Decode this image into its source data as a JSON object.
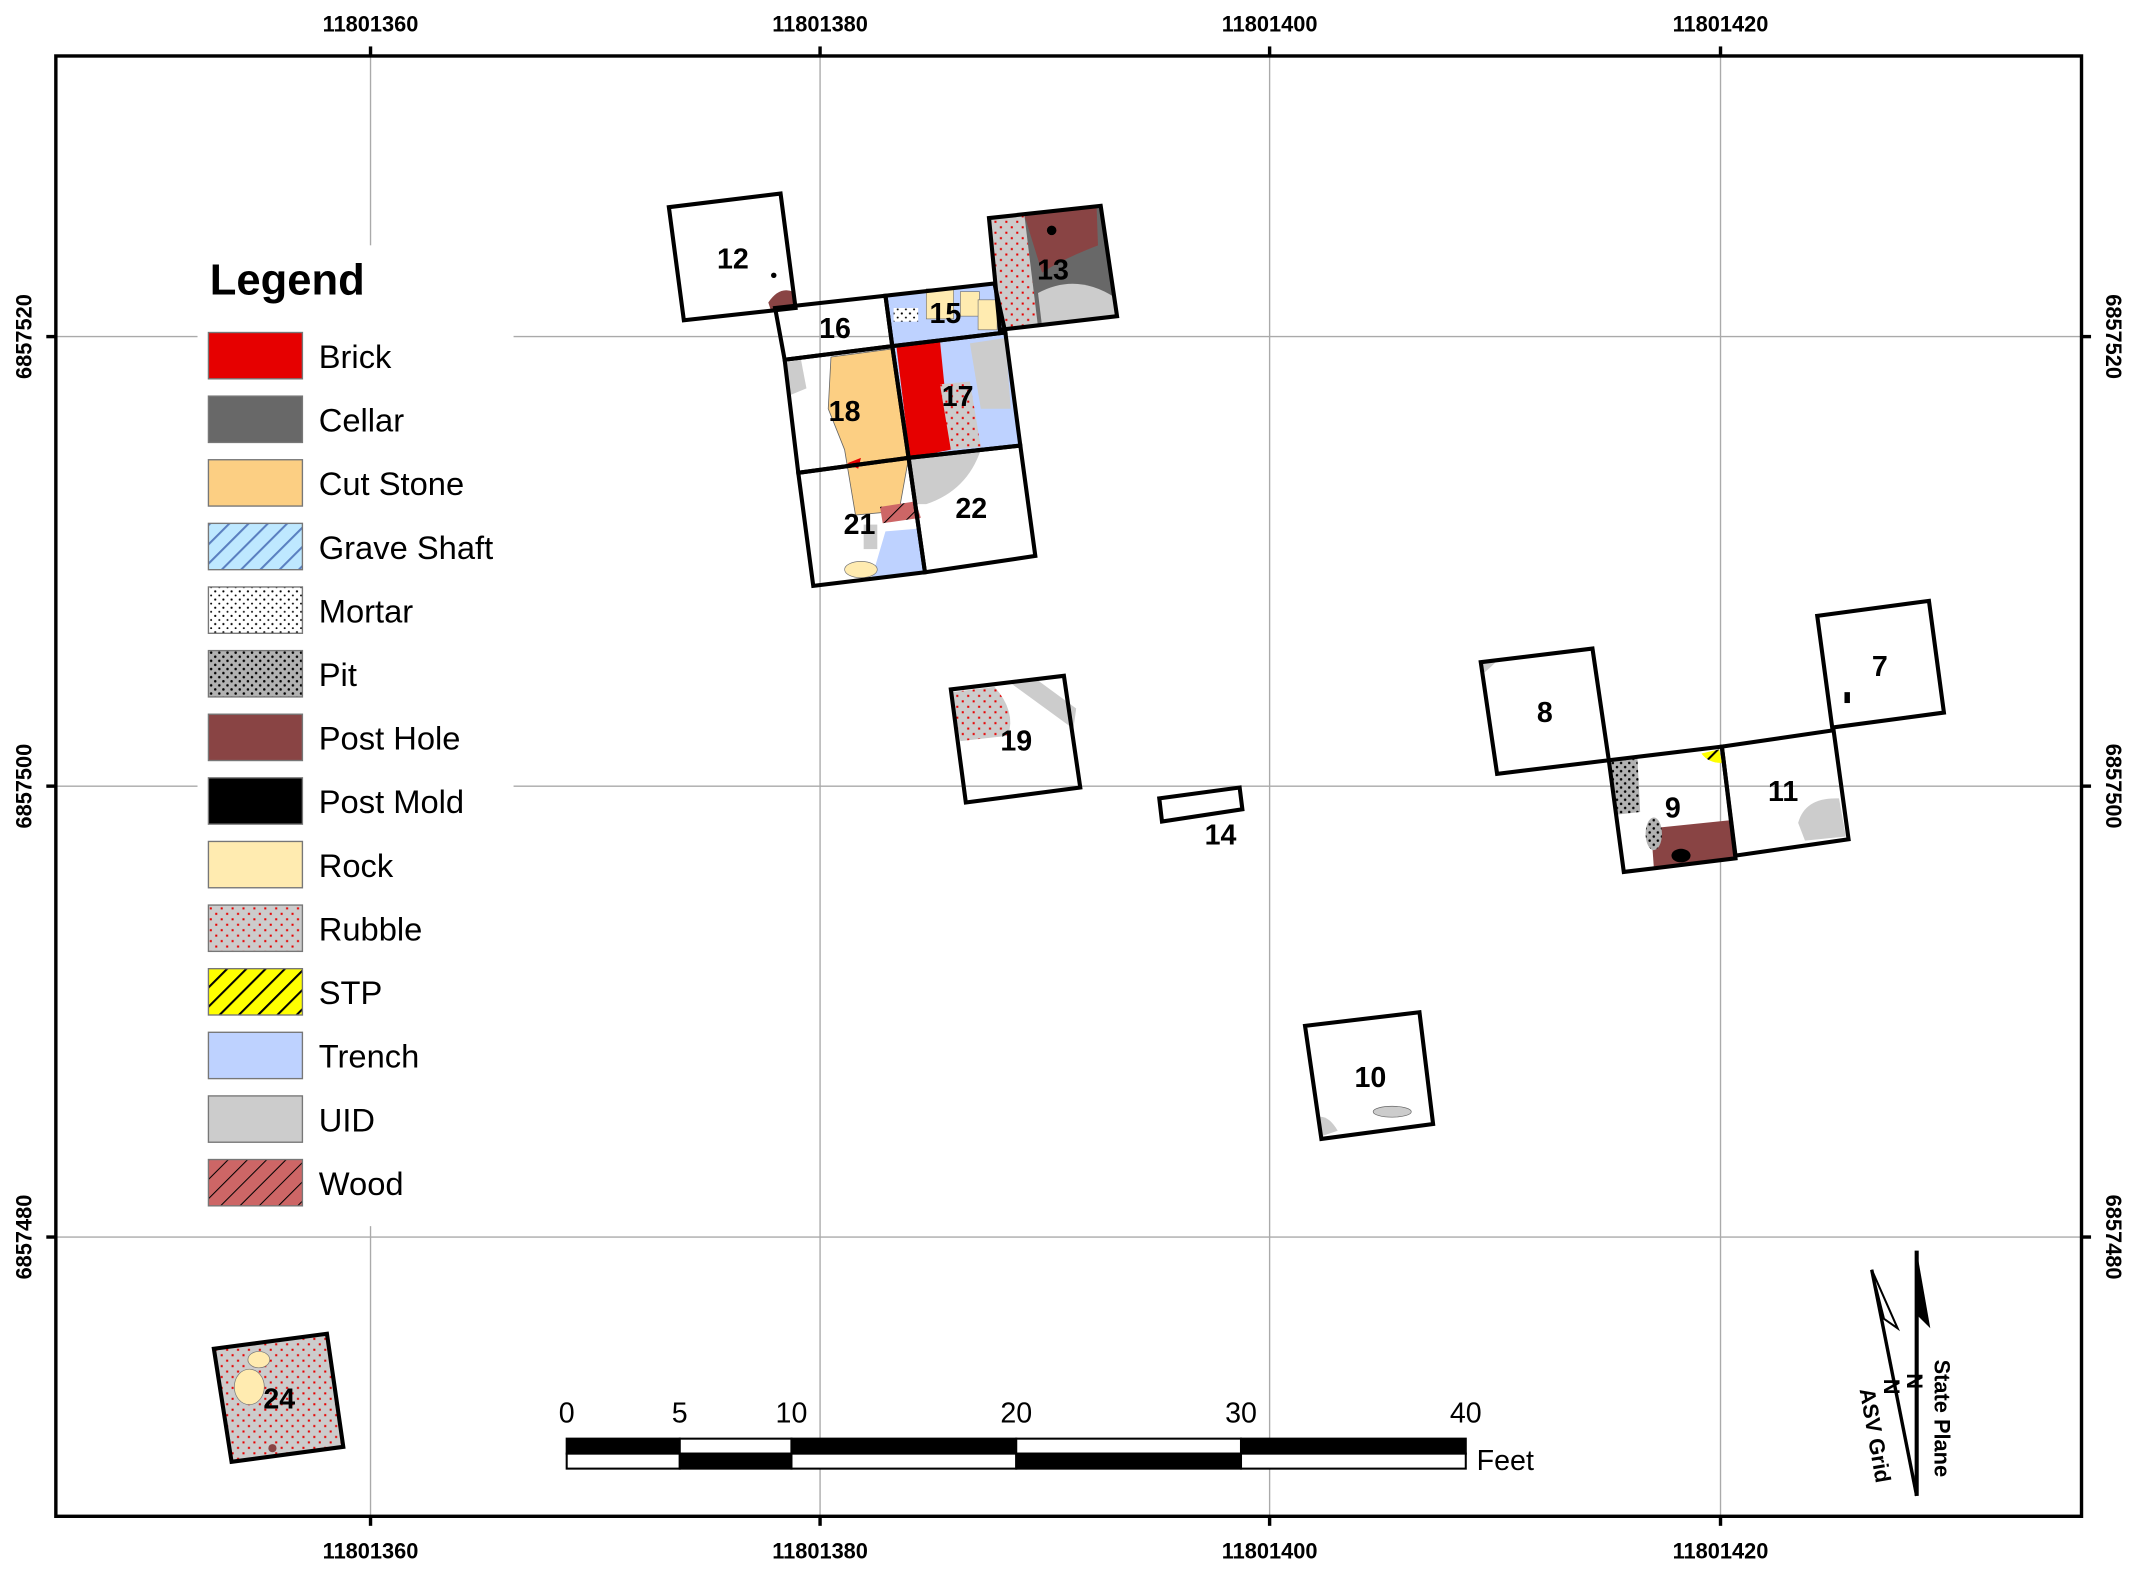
{
  "map": {
    "x_ticks": [
      "11801360",
      "11801380",
      "11801400",
      "11801420"
    ],
    "y_ticks": [
      "6857520",
      "6857500",
      "6857480"
    ],
    "units": [
      "12",
      "13",
      "15",
      "16",
      "17",
      "18",
      "21",
      "22",
      "19",
      "14",
      "8",
      "9",
      "11",
      "7",
      "10",
      "24"
    ]
  },
  "legend": {
    "title": "Legend",
    "items": [
      {
        "label": "Brick",
        "color": "#e60000"
      },
      {
        "label": "Cellar",
        "color": "#686868"
      },
      {
        "label": "Cut Stone",
        "color": "#fccf83"
      },
      {
        "label": "Grave Shaft",
        "color": "#bee8ff"
      },
      {
        "label": "Mortar",
        "color": "#ffffff"
      },
      {
        "label": "Pit",
        "color": "#b2b2b2"
      },
      {
        "label": "Post Hole",
        "color": "#894444"
      },
      {
        "label": "Post Mold",
        "color": "#000000"
      },
      {
        "label": "Rock",
        "color": "#ffebb0"
      },
      {
        "label": "Rubble",
        "color": "#cccccc"
      },
      {
        "label": "STP",
        "color": "#ffff00"
      },
      {
        "label": "Trench",
        "color": "#bed2ff"
      },
      {
        "label": "UID",
        "color": "#cccccc"
      },
      {
        "label": "Wood",
        "color": "#cd6666"
      }
    ]
  },
  "scale_bar": {
    "labels": [
      "0",
      "5",
      "10",
      "20",
      "30",
      "40"
    ],
    "unit": "Feet"
  },
  "north_arrow": {
    "state_plane": "State Plane",
    "asv_grid": "ASV Grid",
    "n": "N"
  }
}
